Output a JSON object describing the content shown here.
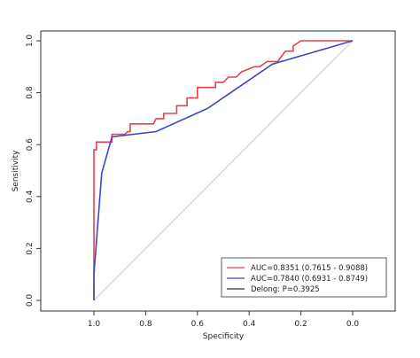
{
  "chart_data": {
    "type": "line",
    "xlabel": "Specificity",
    "ylabel": "Sensitivity",
    "x_reversed": true,
    "xlim": [
      1.3,
      -0.15
    ],
    "ylim": [
      0,
      1
    ],
    "xticks": [
      {
        "value": 1.0,
        "label": "1.0"
      },
      {
        "value": 0.8,
        "label": "0.8"
      },
      {
        "value": 0.6,
        "label": "0.6"
      },
      {
        "value": 0.4,
        "label": "0.4"
      },
      {
        "value": 0.2,
        "label": "0.2"
      },
      {
        "value": 0.0,
        "label": "0.0"
      }
    ],
    "yticks": [
      {
        "value": 0.0,
        "label": "0.0"
      },
      {
        "value": 0.2,
        "label": "0.2"
      },
      {
        "value": 0.4,
        "label": "0.4"
      },
      {
        "value": 0.6,
        "label": "0.6"
      },
      {
        "value": 0.8,
        "label": "0.8"
      },
      {
        "value": 1.0,
        "label": "1.0"
      }
    ],
    "diagonal": {
      "color": "#cccccc",
      "points": [
        [
          1,
          0
        ],
        [
          0,
          1
        ]
      ]
    },
    "series": [
      {
        "name": "AUC=0.8351 (0.7615 - 0.9088)",
        "color": "#e8414b",
        "points": [
          [
            1.0,
            0.0
          ],
          [
            1.0,
            0.58
          ],
          [
            0.99,
            0.58
          ],
          [
            0.99,
            0.61
          ],
          [
            0.98,
            0.61
          ],
          [
            0.93,
            0.61
          ],
          [
            0.93,
            0.64
          ],
          [
            0.88,
            0.64
          ],
          [
            0.87,
            0.65
          ],
          [
            0.86,
            0.65
          ],
          [
            0.86,
            0.68
          ],
          [
            0.8,
            0.68
          ],
          [
            0.8,
            0.68
          ],
          [
            0.77,
            0.68
          ],
          [
            0.76,
            0.7
          ],
          [
            0.73,
            0.7
          ],
          [
            0.73,
            0.72
          ],
          [
            0.68,
            0.72
          ],
          [
            0.68,
            0.75
          ],
          [
            0.64,
            0.75
          ],
          [
            0.64,
            0.78
          ],
          [
            0.6,
            0.78
          ],
          [
            0.6,
            0.82
          ],
          [
            0.53,
            0.82
          ],
          [
            0.53,
            0.84
          ],
          [
            0.5,
            0.84
          ],
          [
            0.48,
            0.86
          ],
          [
            0.45,
            0.86
          ],
          [
            0.43,
            0.88
          ],
          [
            0.38,
            0.9
          ],
          [
            0.36,
            0.9
          ],
          [
            0.33,
            0.92
          ],
          [
            0.29,
            0.92
          ],
          [
            0.26,
            0.96
          ],
          [
            0.23,
            0.96
          ],
          [
            0.23,
            0.98
          ],
          [
            0.2,
            1.0
          ],
          [
            0.0,
            1.0
          ]
        ]
      },
      {
        "name": "AUC=0.7840 (0.6931 - 0.8749)",
        "color": "#3d46c8",
        "points": [
          [
            1.0,
            0.0
          ],
          [
            1.0,
            0.1
          ],
          [
            0.97,
            0.49
          ],
          [
            0.93,
            0.63
          ],
          [
            0.76,
            0.65
          ],
          [
            0.56,
            0.74
          ],
          [
            0.31,
            0.91
          ],
          [
            0.0,
            1.0
          ]
        ]
      },
      {
        "name": "Delong: P=0.3925",
        "color": "#333333",
        "points": []
      }
    ],
    "legend_position": "bottom-right",
    "grid": false
  }
}
